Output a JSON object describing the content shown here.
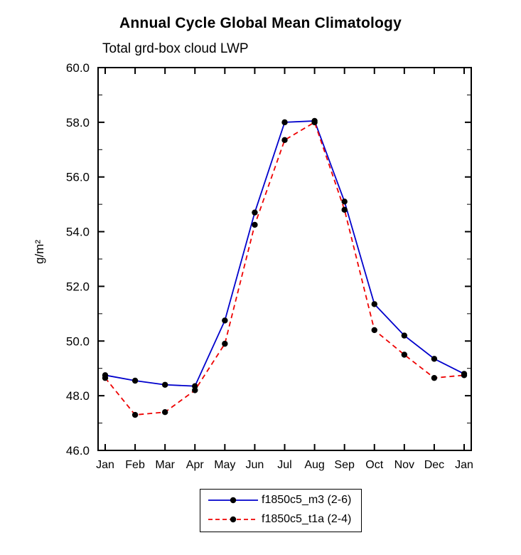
{
  "chart_data": {
    "type": "line",
    "title": "Annual Cycle Global Mean Climatology",
    "subtitle": "Total grd-box cloud LWP",
    "ylabel": "g/m²",
    "ylim": [
      46.0,
      60.0
    ],
    "yticks": [
      46.0,
      48.0,
      50.0,
      52.0,
      54.0,
      56.0,
      58.0,
      60.0
    ],
    "categories": [
      "Jan",
      "Feb",
      "Mar",
      "Apr",
      "May",
      "Jun",
      "Jul",
      "Aug",
      "Sep",
      "Oct",
      "Nov",
      "Dec",
      "Jan"
    ],
    "grid": false,
    "legend_position": "bottom",
    "marker": {
      "shape": "circle",
      "color": "#000000",
      "radius": 4.2
    },
    "axis_color": "#000000",
    "series": [
      {
        "name": "f1850c5_m3 (2-6)",
        "color": "#0000cc",
        "line_style": "solid",
        "values": [
          48.75,
          48.55,
          48.4,
          48.35,
          50.75,
          54.7,
          58.0,
          58.05,
          55.1,
          51.35,
          50.2,
          49.35,
          48.8
        ]
      },
      {
        "name": "f1850c5_t1a (2-4)",
        "color": "#ee0000",
        "line_style": "dashed",
        "values": [
          48.65,
          47.3,
          47.4,
          48.2,
          49.9,
          54.25,
          57.35,
          58.0,
          54.8,
          50.4,
          49.5,
          48.65,
          48.75
        ]
      }
    ]
  }
}
